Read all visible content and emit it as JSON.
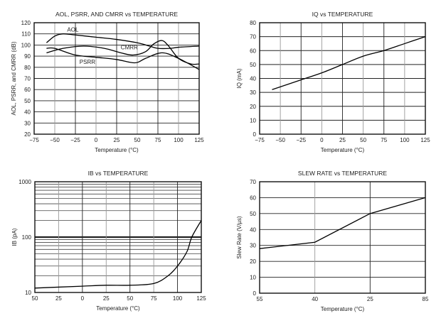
{
  "chart_data": [
    {
      "type": "line",
      "title": "AOL, PSRR, AND CMRR vs TEMPERATURE",
      "xlabel": "Temperature (°C)",
      "ylabel": "AOL, PSRR, and CMRR (dB)",
      "xlim": [
        -75,
        125
      ],
      "ylim": [
        20,
        120
      ],
      "xticks": [
        -75,
        -50,
        -25,
        0,
        25,
        50,
        75,
        100,
        125
      ],
      "xticklabels": [
        "−75",
        "−50",
        "−25",
        "0",
        "25",
        "50",
        "75",
        "100",
        "125"
      ],
      "yticks": [
        20,
        30,
        40,
        50,
        60,
        70,
        80,
        90,
        100,
        110,
        120
      ],
      "grid": true,
      "log": false,
      "series": [
        {
          "name": "AOL",
          "label_at": [
            -35,
            112
          ],
          "x": [
            -60,
            -50,
            -40,
            -25,
            0,
            25,
            50,
            65,
            75,
            90,
            100,
            125
          ],
          "y": [
            102,
            108,
            110,
            109,
            107,
            105,
            102,
            99,
            97,
            97,
            98,
            99
          ]
        },
        {
          "name": "CMRR",
          "label_at": [
            30,
            96
          ],
          "x": [
            -60,
            -40,
            -15,
            10,
            30,
            45,
            60,
            70,
            80,
            88,
            100,
            115,
            125
          ],
          "y": [
            93,
            97,
            99,
            97,
            93,
            91,
            94,
            101,
            104,
            99,
            88,
            83,
            83
          ]
        },
        {
          "name": "PSRR",
          "label_at": [
            -20,
            83
          ],
          "x": [
            -60,
            -50,
            -25,
            0,
            25,
            47,
            60,
            80,
            100,
            125
          ],
          "y": [
            97,
            97,
            91,
            89,
            87,
            84,
            88,
            93,
            88,
            78
          ]
        }
      ]
    },
    {
      "type": "line",
      "title": "IQ vs TEMPERATURE",
      "xlabel": "Temperature (°C)",
      "ylabel": "IQ (mA)",
      "xlim": [
        -75,
        125
      ],
      "ylim": [
        0,
        80
      ],
      "xticks": [
        -75,
        -50,
        -25,
        0,
        25,
        50,
        75,
        100,
        125
      ],
      "xticklabels": [
        "−75",
        "−50",
        "−25",
        "0",
        "25",
        "50",
        "75",
        "100",
        "125"
      ],
      "yticks": [
        0,
        10,
        20,
        30,
        40,
        50,
        60,
        70,
        80
      ],
      "grid": true,
      "log": false,
      "series": [
        {
          "name": "IQ",
          "x": [
            -60,
            -25,
            0,
            25,
            50,
            75,
            100,
            125
          ],
          "y": [
            32,
            39,
            44,
            50,
            56,
            60,
            65,
            70
          ]
        }
      ]
    },
    {
      "type": "line",
      "title": "IB vs TEMPERATURE",
      "xlabel": "Temperature (°C)",
      "ylabel": "IB (pA)",
      "xlim": [
        -50,
        125
      ],
      "ylim": [
        10,
        1000
      ],
      "xticks": [
        -50,
        -25,
        0,
        25,
        50,
        75,
        100,
        125
      ],
      "xticklabels": [
        "50",
        "25",
        "0",
        "25",
        "50",
        "75",
        "100",
        "125"
      ],
      "yticks": [
        10,
        100,
        1000
      ],
      "grid": true,
      "log": true,
      "series": [
        {
          "name": "IB",
          "x": [
            -50,
            -25,
            0,
            25,
            50,
            75,
            90,
            100,
            110,
            115,
            125
          ],
          "y": [
            12,
            12.5,
            13,
            13.5,
            13.5,
            14.5,
            20,
            30,
            55,
            100,
            200
          ]
        }
      ]
    },
    {
      "type": "line",
      "title": "SLEW RATE vs TEMPERATURE",
      "xlabel": "Temperature (°C)",
      "ylabel": "Slew Rate (V/µs)",
      "xlim": [
        0,
        3
      ],
      "ylim": [
        0,
        70
      ],
      "xticks": [
        0,
        1,
        2,
        3
      ],
      "xticklabels": [
        "55",
        "40",
        "25",
        "85"
      ],
      "yticks": [
        0,
        10,
        20,
        30,
        40,
        50,
        60,
        70
      ],
      "grid": true,
      "log": false,
      "series": [
        {
          "name": "Slew Rate",
          "x": [
            0,
            1,
            2,
            3
          ],
          "y": [
            28,
            32,
            50,
            60
          ]
        }
      ]
    }
  ]
}
